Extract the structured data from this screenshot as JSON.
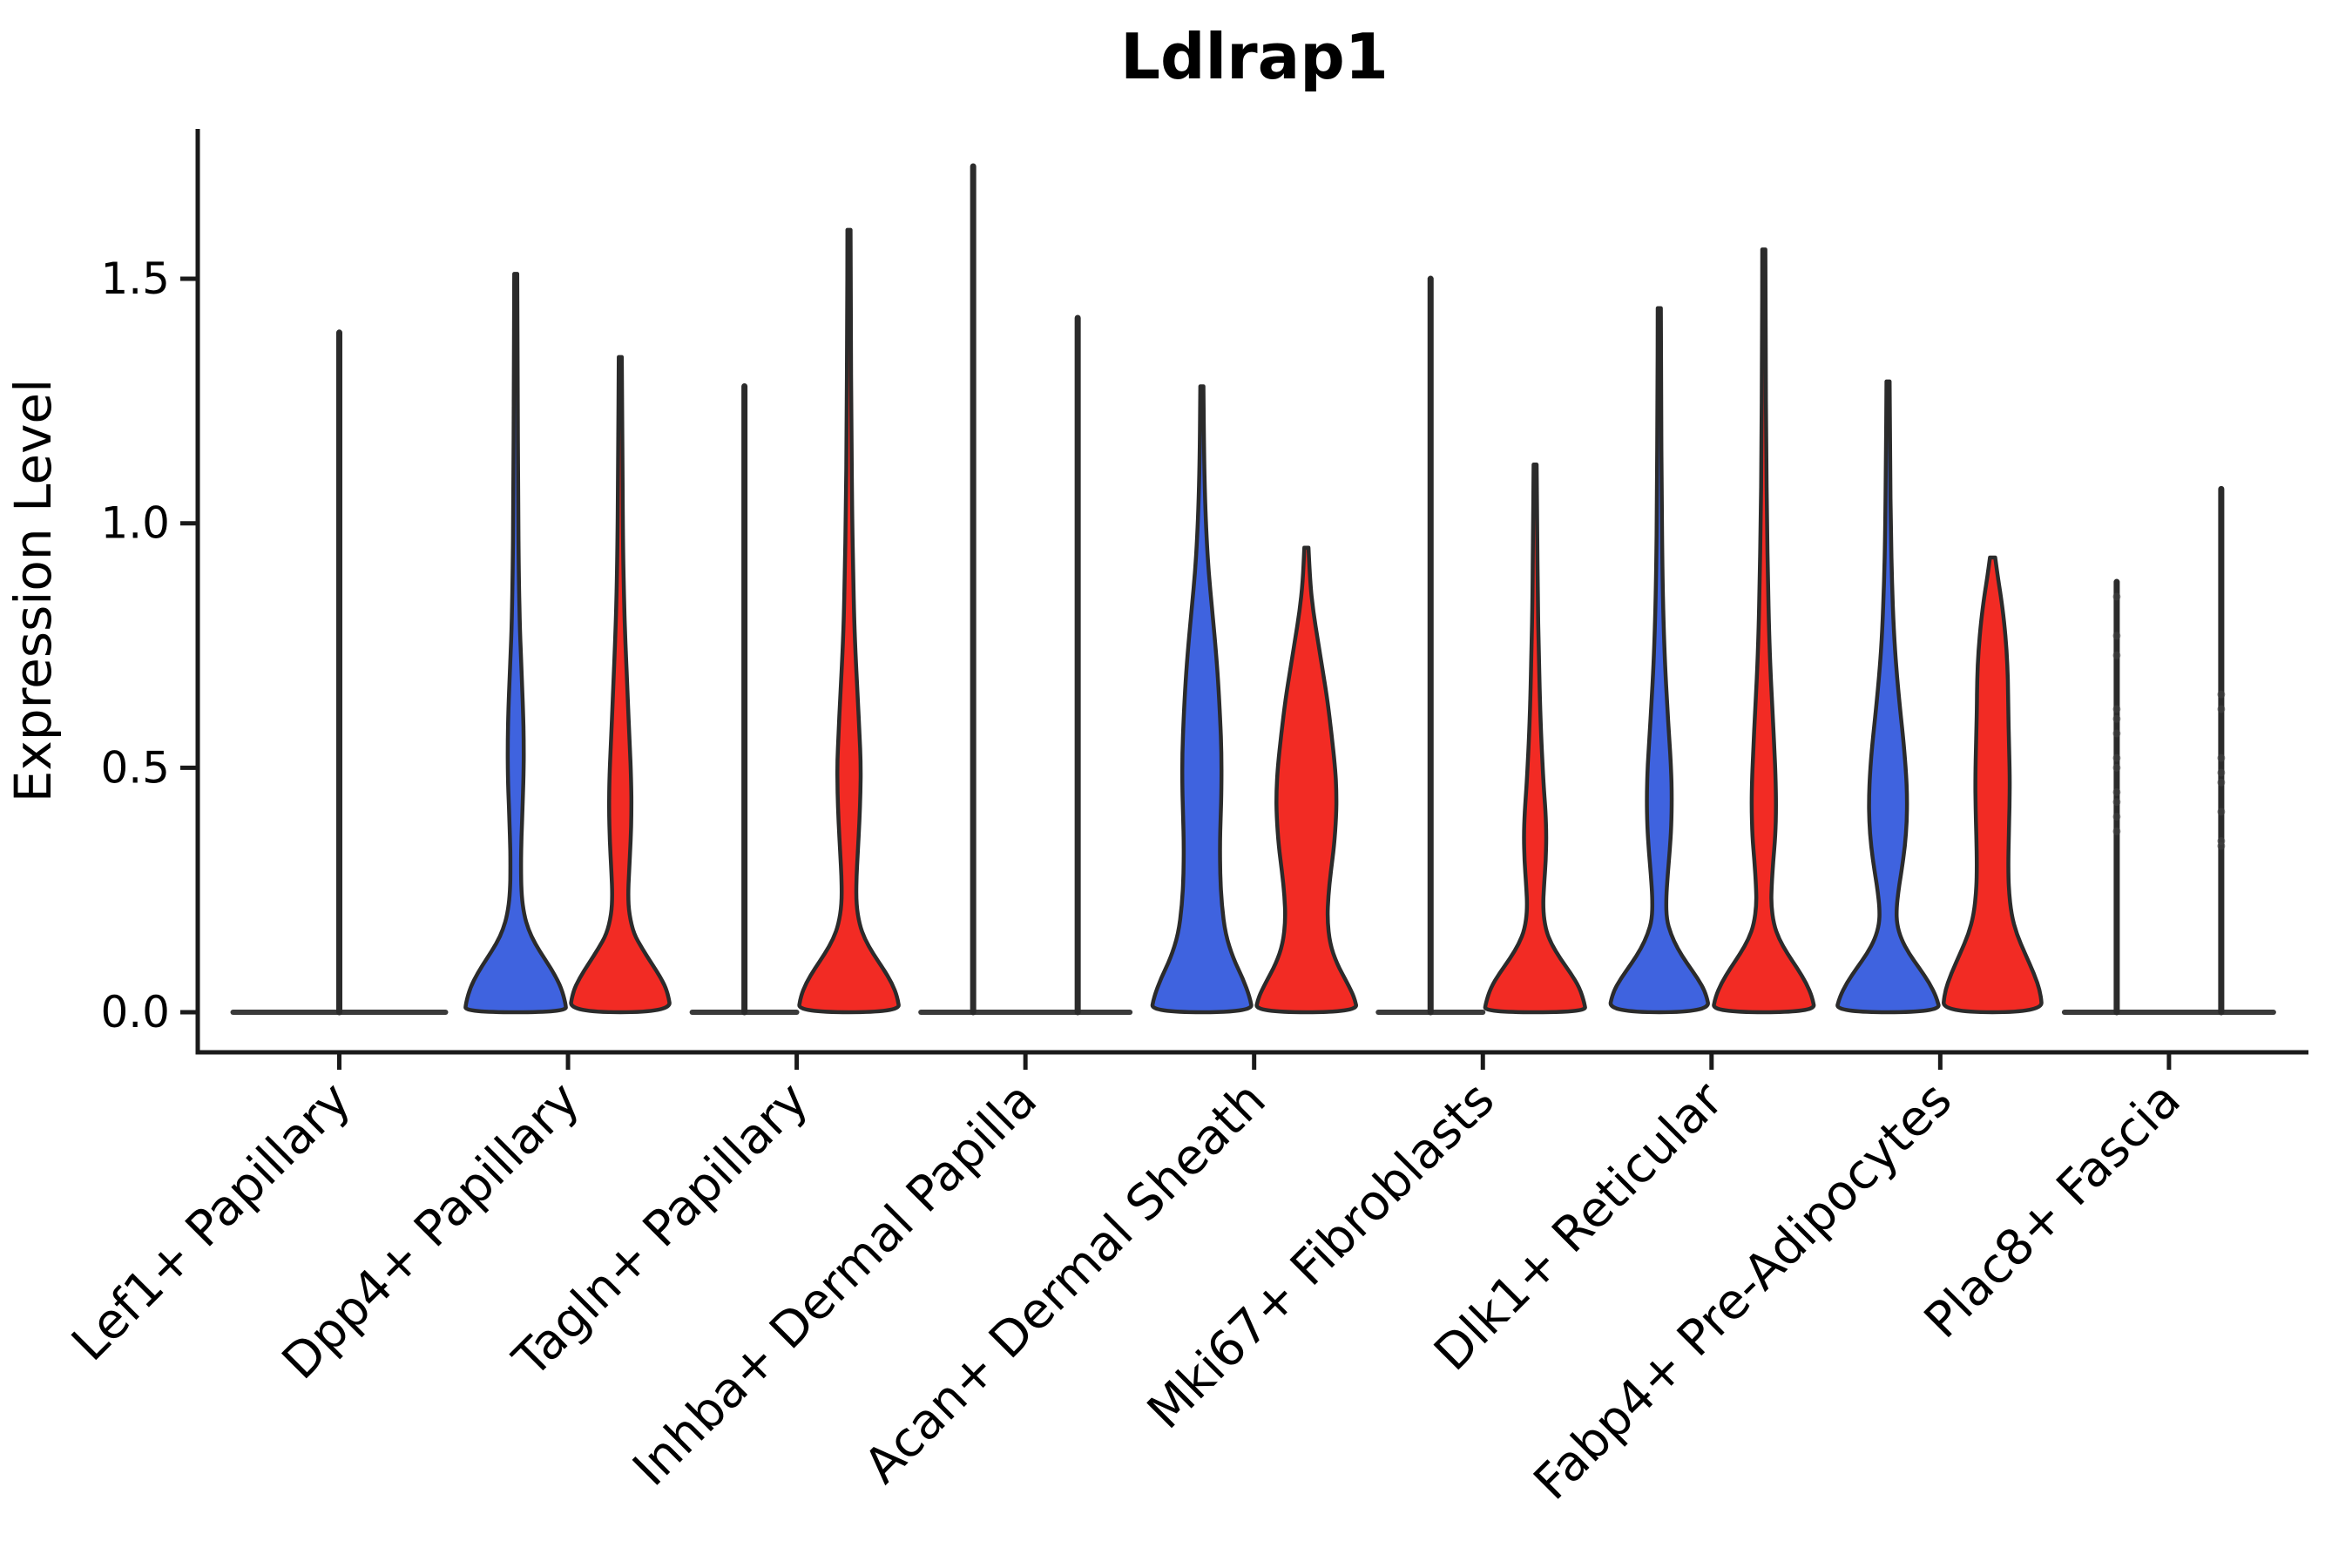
{
  "title": "Ldlrap1",
  "axis": {
    "ylabel": "Expression Level",
    "ytick_labels": [
      "0.0",
      "0.5",
      "1.0",
      "1.5"
    ]
  },
  "colors": {
    "blue": "#3F63DF",
    "red": "#F22B24",
    "outline": "#2B2B2B",
    "axis": "#1A1A1A",
    "flat_line": "#3A3A3A",
    "dot": "#444444"
  },
  "chart_data": {
    "type": "violin",
    "title": "Ldlrap1",
    "xlabel": "",
    "ylabel": "Expression Level",
    "ylim": [
      0,
      1.8
    ],
    "yticks": [
      0,
      0.5,
      1.0,
      1.5
    ],
    "grid": false,
    "legend": "none",
    "split_groups": [
      "blue",
      "red"
    ],
    "categories": [
      "Lef1+ Papillary",
      "Dpp4+ Papillary",
      "Tagln+ Papillary",
      "Inhba+ Dermal Papilla",
      "Acan+ Dermal Sheath",
      "Mki67+ Fibroblasts",
      "Dlk1+ Reticular",
      "Fabp4+ Pre-Adipocytes",
      "Plac8+ Fascia"
    ],
    "violins": [
      {
        "category_index": 0,
        "group": null,
        "style": "flat-spike",
        "offset": 0,
        "base_halfwidth": 122,
        "max": 1.39
      },
      {
        "category_index": 1,
        "group": "blue",
        "style": "density",
        "offset": -1,
        "max": 1.51,
        "profile": [
          [
            1.51,
            0.03
          ],
          [
            1.3,
            0.035
          ],
          [
            1.05,
            0.045
          ],
          [
            0.88,
            0.06
          ],
          [
            0.78,
            0.08
          ],
          [
            0.7,
            0.11
          ],
          [
            0.62,
            0.14
          ],
          [
            0.55,
            0.155
          ],
          [
            0.48,
            0.15
          ],
          [
            0.42,
            0.13
          ],
          [
            0.36,
            0.11
          ],
          [
            0.3,
            0.1
          ],
          [
            0.24,
            0.11
          ],
          [
            0.2,
            0.16
          ],
          [
            0.17,
            0.24
          ],
          [
            0.14,
            0.37
          ],
          [
            0.11,
            0.55
          ],
          [
            0.08,
            0.73
          ],
          [
            0.05,
            0.87
          ],
          [
            0.02,
            0.95
          ],
          [
            0,
            0.97
          ]
        ]
      },
      {
        "category_index": 1,
        "group": "red",
        "style": "density",
        "offset": 1,
        "max": 1.34,
        "profile": [
          [
            1.34,
            0.03
          ],
          [
            1.15,
            0.04
          ],
          [
            0.98,
            0.05
          ],
          [
            0.85,
            0.07
          ],
          [
            0.75,
            0.1
          ],
          [
            0.65,
            0.14
          ],
          [
            0.55,
            0.18
          ],
          [
            0.47,
            0.21
          ],
          [
            0.41,
            0.215
          ],
          [
            0.35,
            0.2
          ],
          [
            0.29,
            0.17
          ],
          [
            0.24,
            0.15
          ],
          [
            0.2,
            0.17
          ],
          [
            0.16,
            0.26
          ],
          [
            0.13,
            0.42
          ],
          [
            0.1,
            0.6
          ],
          [
            0.07,
            0.78
          ],
          [
            0.04,
            0.91
          ],
          [
            0,
            0.97
          ]
        ]
      },
      {
        "category_index": 2,
        "group": "blue",
        "style": "flat-spike",
        "offset": -1,
        "base_halfwidth": 60,
        "max": 1.28
      },
      {
        "category_index": 2,
        "group": "red",
        "style": "density",
        "offset": 1,
        "max": 1.6,
        "profile": [
          [
            1.6,
            0.03
          ],
          [
            1.4,
            0.035
          ],
          [
            1.2,
            0.045
          ],
          [
            1.02,
            0.06
          ],
          [
            0.9,
            0.08
          ],
          [
            0.8,
            0.1
          ],
          [
            0.72,
            0.13
          ],
          [
            0.64,
            0.17
          ],
          [
            0.57,
            0.2
          ],
          [
            0.51,
            0.225
          ],
          [
            0.45,
            0.22
          ],
          [
            0.39,
            0.2
          ],
          [
            0.33,
            0.17
          ],
          [
            0.27,
            0.14
          ],
          [
            0.22,
            0.14
          ],
          [
            0.18,
            0.2
          ],
          [
            0.15,
            0.3
          ],
          [
            0.12,
            0.46
          ],
          [
            0.09,
            0.65
          ],
          [
            0.06,
            0.82
          ],
          [
            0.03,
            0.93
          ],
          [
            0,
            0.97
          ]
        ]
      },
      {
        "category_index": 3,
        "group": "blue",
        "style": "flat-spike",
        "offset": -1,
        "base_halfwidth": 60,
        "max": 1.73
      },
      {
        "category_index": 3,
        "group": "red",
        "style": "flat-spike",
        "offset": 1,
        "base_halfwidth": 60,
        "max": 1.42
      },
      {
        "category_index": 4,
        "group": "blue",
        "style": "density",
        "offset": -1,
        "max": 1.28,
        "profile": [
          [
            1.28,
            0.03
          ],
          [
            1.15,
            0.04
          ],
          [
            1.05,
            0.06
          ],
          [
            0.97,
            0.09
          ],
          [
            0.9,
            0.13
          ],
          [
            0.83,
            0.19
          ],
          [
            0.75,
            0.26
          ],
          [
            0.68,
            0.31
          ],
          [
            0.6,
            0.35
          ],
          [
            0.53,
            0.375
          ],
          [
            0.46,
            0.375
          ],
          [
            0.4,
            0.36
          ],
          [
            0.34,
            0.345
          ],
          [
            0.28,
            0.35
          ],
          [
            0.22,
            0.38
          ],
          [
            0.16,
            0.45
          ],
          [
            0.11,
            0.6
          ],
          [
            0.07,
            0.78
          ],
          [
            0.03,
            0.92
          ],
          [
            0,
            0.97
          ]
        ]
      },
      {
        "category_index": 4,
        "group": "red",
        "style": "density",
        "offset": 1,
        "max": 0.95,
        "profile": [
          [
            0.95,
            0.04
          ],
          [
            0.88,
            0.07
          ],
          [
            0.82,
            0.13
          ],
          [
            0.76,
            0.22
          ],
          [
            0.7,
            0.31
          ],
          [
            0.64,
            0.4
          ],
          [
            0.57,
            0.48
          ],
          [
            0.5,
            0.55
          ],
          [
            0.45,
            0.575
          ],
          [
            0.4,
            0.57
          ],
          [
            0.34,
            0.53
          ],
          [
            0.29,
            0.47
          ],
          [
            0.24,
            0.42
          ],
          [
            0.19,
            0.4
          ],
          [
            0.14,
            0.45
          ],
          [
            0.1,
            0.58
          ],
          [
            0.06,
            0.78
          ],
          [
            0.03,
            0.92
          ],
          [
            0,
            0.98
          ]
        ]
      },
      {
        "category_index": 5,
        "group": "blue",
        "style": "flat-spike",
        "offset": -1,
        "base_halfwidth": 60,
        "max": 1.5
      },
      {
        "category_index": 5,
        "group": "red",
        "style": "density",
        "offset": 1,
        "max": 1.12,
        "profile": [
          [
            1.12,
            0.03
          ],
          [
            0.98,
            0.04
          ],
          [
            0.85,
            0.05
          ],
          [
            0.74,
            0.07
          ],
          [
            0.64,
            0.09
          ],
          [
            0.55,
            0.12
          ],
          [
            0.47,
            0.16
          ],
          [
            0.41,
            0.2
          ],
          [
            0.36,
            0.215
          ],
          [
            0.31,
            0.205
          ],
          [
            0.26,
            0.17
          ],
          [
            0.21,
            0.15
          ],
          [
            0.17,
            0.2
          ],
          [
            0.14,
            0.31
          ],
          [
            0.11,
            0.48
          ],
          [
            0.08,
            0.68
          ],
          [
            0.05,
            0.85
          ],
          [
            0.02,
            0.94
          ],
          [
            0,
            0.97
          ]
        ]
      },
      {
        "category_index": 6,
        "group": "blue",
        "style": "density",
        "offset": -1,
        "max": 1.44,
        "profile": [
          [
            1.44,
            0.03
          ],
          [
            1.25,
            0.035
          ],
          [
            1.05,
            0.045
          ],
          [
            0.9,
            0.06
          ],
          [
            0.8,
            0.08
          ],
          [
            0.71,
            0.11
          ],
          [
            0.63,
            0.15
          ],
          [
            0.56,
            0.19
          ],
          [
            0.5,
            0.225
          ],
          [
            0.44,
            0.24
          ],
          [
            0.38,
            0.23
          ],
          [
            0.33,
            0.2
          ],
          [
            0.28,
            0.16
          ],
          [
            0.23,
            0.13
          ],
          [
            0.19,
            0.14
          ],
          [
            0.16,
            0.22
          ],
          [
            0.13,
            0.35
          ],
          [
            0.1,
            0.53
          ],
          [
            0.07,
            0.73
          ],
          [
            0.04,
            0.89
          ],
          [
            0,
            0.97
          ]
        ]
      },
      {
        "category_index": 6,
        "group": "red",
        "style": "density",
        "offset": 1,
        "max": 1.56,
        "profile": [
          [
            1.56,
            0.03
          ],
          [
            1.35,
            0.035
          ],
          [
            1.15,
            0.045
          ],
          [
            1.0,
            0.06
          ],
          [
            0.88,
            0.08
          ],
          [
            0.78,
            0.1
          ],
          [
            0.69,
            0.13
          ],
          [
            0.61,
            0.17
          ],
          [
            0.54,
            0.2
          ],
          [
            0.48,
            0.225
          ],
          [
            0.42,
            0.235
          ],
          [
            0.36,
            0.22
          ],
          [
            0.31,
            0.18
          ],
          [
            0.26,
            0.15
          ],
          [
            0.22,
            0.14
          ],
          [
            0.18,
            0.19
          ],
          [
            0.15,
            0.29
          ],
          [
            0.12,
            0.45
          ],
          [
            0.09,
            0.64
          ],
          [
            0.06,
            0.81
          ],
          [
            0.03,
            0.93
          ],
          [
            0,
            0.98
          ]
        ]
      },
      {
        "category_index": 7,
        "group": "blue",
        "style": "density",
        "offset": -1,
        "max": 1.29,
        "profile": [
          [
            1.29,
            0.03
          ],
          [
            1.12,
            0.04
          ],
          [
            0.98,
            0.055
          ],
          [
            0.88,
            0.075
          ],
          [
            0.78,
            0.11
          ],
          [
            0.7,
            0.16
          ],
          [
            0.62,
            0.23
          ],
          [
            0.55,
            0.3
          ],
          [
            0.49,
            0.345
          ],
          [
            0.44,
            0.365
          ],
          [
            0.39,
            0.36
          ],
          [
            0.34,
            0.325
          ],
          [
            0.29,
            0.26
          ],
          [
            0.25,
            0.2
          ],
          [
            0.21,
            0.16
          ],
          [
            0.18,
            0.17
          ],
          [
            0.15,
            0.25
          ],
          [
            0.12,
            0.4
          ],
          [
            0.09,
            0.6
          ],
          [
            0.06,
            0.79
          ],
          [
            0.03,
            0.93
          ],
          [
            0,
            1.0
          ]
        ]
      },
      {
        "category_index": 7,
        "group": "red",
        "style": "density",
        "offset": 1,
        "max": 0.93,
        "profile": [
          [
            0.93,
            0.05
          ],
          [
            0.89,
            0.1
          ],
          [
            0.85,
            0.16
          ],
          [
            0.8,
            0.22
          ],
          [
            0.74,
            0.27
          ],
          [
            0.68,
            0.295
          ],
          [
            0.62,
            0.3
          ],
          [
            0.55,
            0.315
          ],
          [
            0.48,
            0.33
          ],
          [
            0.42,
            0.325
          ],
          [
            0.36,
            0.31
          ],
          [
            0.3,
            0.3
          ],
          [
            0.25,
            0.31
          ],
          [
            0.2,
            0.36
          ],
          [
            0.16,
            0.46
          ],
          [
            0.12,
            0.62
          ],
          [
            0.08,
            0.79
          ],
          [
            0.04,
            0.92
          ],
          [
            0,
            0.95
          ]
        ]
      },
      {
        "category_index": 8,
        "group": "blue",
        "style": "flat-spike",
        "offset": -1,
        "base_halfwidth": 60,
        "max": 0.88,
        "dots": [
          0.85,
          0.77,
          0.73,
          0.62,
          0.6,
          0.57,
          0.52,
          0.5,
          0.45,
          0.43,
          0.4,
          0.37
        ]
      },
      {
        "category_index": 8,
        "group": "red",
        "style": "flat-spike",
        "offset": 1,
        "base_halfwidth": 60,
        "max": 1.07,
        "dots": [
          0.65,
          0.62,
          0.52,
          0.49,
          0.47,
          0.41,
          0.35,
          0.34
        ]
      }
    ]
  }
}
